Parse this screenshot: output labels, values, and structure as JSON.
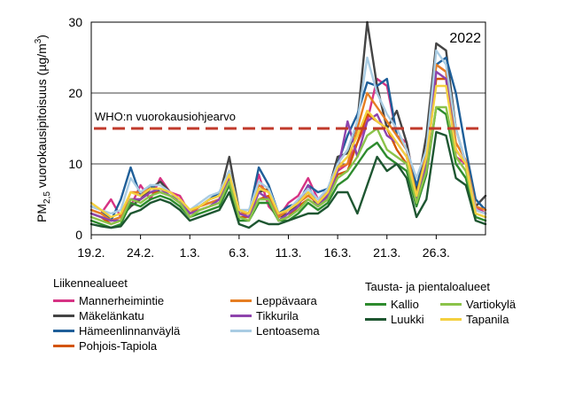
{
  "chart_data": {
    "type": "line",
    "year_label": "2022",
    "ylabel_prefix": "PM",
    "ylabel_sub": "2,5",
    "ylabel_main": " vuorokausipitoisuus  (µg/m",
    "ylabel_sup": "3",
    "ylabel_suffix": ")",
    "ylim": [
      0,
      30
    ],
    "yticks": [
      0,
      10,
      20,
      30
    ],
    "xlim": [
      0,
      40
    ],
    "xtick_positions": [
      0,
      5,
      10,
      15,
      20,
      25,
      30,
      35
    ],
    "xtick_labels": [
      "19.2.",
      "24.2.",
      "1.3.",
      "6.3.",
      "11.3.",
      "16.3.",
      "21.3.",
      "26.3."
    ],
    "reference": {
      "label": "WHO:n vuorokausiohjearvo",
      "value": 15,
      "color": "#c0392b"
    },
    "series": [
      {
        "name": "Mannerheimintie",
        "group": "traffic",
        "color": "#d63384",
        "values": [
          3.5,
          3.0,
          5.0,
          2.5,
          4.0,
          7.0,
          5.0,
          8.0,
          6.0,
          5.5,
          3.0,
          4.0,
          4.5,
          5.0,
          8.0,
          3.0,
          3.0,
          8.5,
          4.0,
          2.5,
          4.5,
          5.5,
          8.0,
          5.0,
          6.0,
          9.0,
          10.0,
          13.0,
          16.0,
          22.0,
          21.0,
          14.0,
          13.0,
          6.0,
          12.0,
          24.0,
          23.0,
          11.0,
          10.0,
          4.0,
          3.0
        ]
      },
      {
        "name": "Mäkelänkatu",
        "group": "traffic",
        "color": "#444444",
        "values": [
          3.0,
          2.5,
          2.0,
          2.5,
          4.0,
          5.0,
          6.5,
          7.5,
          6.0,
          5.0,
          3.5,
          4.0,
          5.0,
          5.5,
          11.0,
          3.5,
          3.0,
          6.0,
          6.5,
          2.5,
          3.0,
          4.5,
          6.0,
          4.0,
          6.0,
          11.0,
          11.5,
          16.0,
          30.0,
          21.0,
          15.0,
          17.5,
          13.0,
          6.0,
          14.0,
          27.0,
          26.0,
          15.0,
          10.0,
          4.0,
          5.5
        ]
      },
      {
        "name": "Hämeenlinnanväylä",
        "group": "traffic",
        "color": "#1f5f99",
        "values": [
          4.0,
          3.5,
          2.0,
          5.0,
          9.5,
          5.5,
          7.0,
          6.0,
          5.5,
          4.5,
          3.5,
          4.0,
          5.0,
          6.0,
          9.0,
          3.0,
          3.0,
          9.5,
          7.0,
          3.0,
          4.0,
          4.5,
          7.0,
          6.0,
          6.5,
          10.0,
          14.0,
          17.0,
          21.5,
          21.0,
          22.0,
          14.0,
          12.0,
          7.0,
          11.0,
          24.0,
          25.0,
          20.0,
          12.0,
          5.0,
          3.5
        ]
      },
      {
        "name": "Pohjois-Tapiola",
        "group": "traffic",
        "color": "#d35400",
        "values": [
          3.0,
          2.5,
          1.5,
          2.0,
          5.0,
          5.0,
          6.0,
          6.0,
          5.5,
          4.5,
          3.0,
          3.5,
          4.0,
          4.5,
          8.0,
          2.5,
          2.5,
          5.0,
          5.5,
          2.0,
          2.5,
          4.0,
          5.0,
          4.0,
          5.0,
          8.5,
          9.0,
          13.0,
          17.0,
          16.0,
          15.0,
          12.0,
          10.0,
          5.0,
          10.0,
          22.0,
          22.0,
          12.0,
          10.0,
          3.5,
          3.0
        ]
      },
      {
        "name": "Leppävaara",
        "group": "traffic",
        "color": "#e67e22",
        "values": [
          3.5,
          3.0,
          2.0,
          2.5,
          6.0,
          6.0,
          6.5,
          6.5,
          6.0,
          5.0,
          3.0,
          4.0,
          4.5,
          5.0,
          9.0,
          3.0,
          3.0,
          7.0,
          6.0,
          2.5,
          3.5,
          4.5,
          5.5,
          4.5,
          6.0,
          9.5,
          10.0,
          15.0,
          20.0,
          18.0,
          16.0,
          14.0,
          12.0,
          5.5,
          11.5,
          24.0,
          23.0,
          13.0,
          10.5,
          4.0,
          3.5
        ]
      },
      {
        "name": "Tikkurila",
        "group": "traffic",
        "color": "#8e44ad",
        "values": [
          3.0,
          2.5,
          2.0,
          2.0,
          5.0,
          5.0,
          6.0,
          6.5,
          5.5,
          5.0,
          3.0,
          3.5,
          4.0,
          5.0,
          8.0,
          3.0,
          2.5,
          6.0,
          5.0,
          2.0,
          3.0,
          4.0,
          7.0,
          4.0,
          5.5,
          9.0,
          16.0,
          11.0,
          16.0,
          17.0,
          14.0,
          13.0,
          11.0,
          5.0,
          10.0,
          23.0,
          22.0,
          12.0,
          10.0,
          3.5,
          3.0
        ]
      },
      {
        "name": "Lentoasema",
        "group": "traffic",
        "color": "#a9cce3",
        "values": [
          4.0,
          3.5,
          3.0,
          3.5,
          8.0,
          6.0,
          7.0,
          7.0,
          6.0,
          5.0,
          3.5,
          4.5,
          5.5,
          6.0,
          9.0,
          3.5,
          3.5,
          7.5,
          6.5,
          3.0,
          3.5,
          5.0,
          6.5,
          5.0,
          6.5,
          10.0,
          12.0,
          16.0,
          25.0,
          20.0,
          17.0,
          15.0,
          12.0,
          8.0,
          12.0,
          26.0,
          24.0,
          15.0,
          10.0,
          3.5,
          3.0
        ]
      },
      {
        "name": "Kallio",
        "group": "background",
        "color": "#2e8b2e",
        "values": [
          2.0,
          1.5,
          1.0,
          1.5,
          4.5,
          4.0,
          5.0,
          5.5,
          5.0,
          4.0,
          2.5,
          3.0,
          3.5,
          4.0,
          7.0,
          2.0,
          2.0,
          4.5,
          4.5,
          2.0,
          2.0,
          3.0,
          4.5,
          3.5,
          4.5,
          7.0,
          8.0,
          10.0,
          12.0,
          13.0,
          11.0,
          10.0,
          9.0,
          4.0,
          8.5,
          18.0,
          17.0,
          10.0,
          8.0,
          2.5,
          2.0
        ]
      },
      {
        "name": "Luukki",
        "group": "background",
        "color": "#1e5631",
        "values": [
          1.5,
          1.2,
          1.0,
          1.2,
          3.0,
          3.5,
          4.5,
          5.0,
          4.5,
          3.5,
          2.0,
          2.5,
          3.0,
          3.5,
          6.0,
          1.5,
          1.0,
          2.0,
          1.5,
          1.5,
          2.0,
          2.5,
          3.0,
          3.0,
          4.0,
          6.0,
          6.0,
          3.0,
          7.0,
          11.0,
          9.0,
          10.0,
          8.0,
          2.5,
          5.0,
          14.5,
          14.0,
          8.0,
          7.0,
          2.0,
          1.5
        ]
      },
      {
        "name": "Vartiokylä",
        "group": "background",
        "color": "#8bc34a",
        "values": [
          2.5,
          2.0,
          1.5,
          2.0,
          5.0,
          4.5,
          5.5,
          6.0,
          5.5,
          4.5,
          2.5,
          3.5,
          4.0,
          4.5,
          7.5,
          2.5,
          2.0,
          5.0,
          5.0,
          2.0,
          2.5,
          3.5,
          5.0,
          4.0,
          5.0,
          8.0,
          9.0,
          11.0,
          14.0,
          15.0,
          12.0,
          11.0,
          10.0,
          4.5,
          9.0,
          18.0,
          18.0,
          11.0,
          9.0,
          3.0,
          2.5
        ]
      },
      {
        "name": "Tapanila",
        "group": "background",
        "color": "#f4d03f",
        "values": [
          4.5,
          3.5,
          2.5,
          3.0,
          6.0,
          5.5,
          6.5,
          6.5,
          6.0,
          5.0,
          3.5,
          4.0,
          5.0,
          5.5,
          8.5,
          3.5,
          3.0,
          6.5,
          6.0,
          3.0,
          3.5,
          4.5,
          6.0,
          4.5,
          6.0,
          9.5,
          11.0,
          14.0,
          17.5,
          16.0,
          15.0,
          13.0,
          11.0,
          5.5,
          11.0,
          21.0,
          21.0,
          12.0,
          10.0,
          3.0,
          2.5
        ]
      }
    ]
  },
  "legend": {
    "traffic_title": "Liikennealueet",
    "traffic_col1": [
      "Mannerheimintie",
      "Mäkelänkatu",
      "Hämeenlinnanväylä",
      "Pohjois-Tapiola"
    ],
    "traffic_col2": [
      "Leppävaara",
      "Tikkurila",
      "Lentoasema"
    ],
    "background_title": "Tausta- ja pientaloalueet",
    "background_col1": [
      "Kallio",
      "Luukki"
    ],
    "background_col2": [
      "Vartiokylä",
      "Tapanila"
    ]
  }
}
